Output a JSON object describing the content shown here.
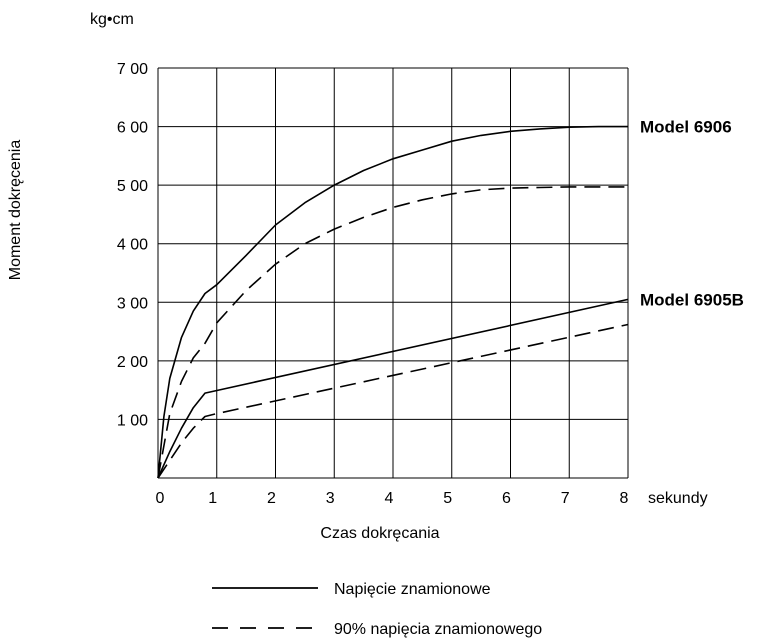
{
  "chart_data": {
    "type": "line",
    "title": "",
    "unit_label": "kg•cm",
    "xlabel": "Czas dokręcania",
    "xunit_label": "sekundy",
    "ylabel": "Moment dokręcenia",
    "xlim": [
      0,
      8
    ],
    "ylim": [
      0,
      700
    ],
    "x_ticks": [
      "0",
      "1",
      "2",
      "3",
      "4",
      "5",
      "6",
      "7",
      "8"
    ],
    "y_ticks": [
      {
        "value": 100,
        "label": "1 00"
      },
      {
        "value": 200,
        "label": "2 00"
      },
      {
        "value": 300,
        "label": "3 00"
      },
      {
        "value": 400,
        "label": "4 00"
      },
      {
        "value": 500,
        "label": "5 00"
      },
      {
        "value": 600,
        "label": "6 00"
      },
      {
        "value": 700,
        "label": "7 00"
      }
    ],
    "grid": true,
    "legend_position": "bottom",
    "legend": [
      {
        "style": "solid",
        "label": "Napięcie znamionowe"
      },
      {
        "style": "dashed",
        "label": "90% napięcia znamionowego"
      }
    ],
    "model_labels": [
      {
        "text": "Model 6906",
        "y": 600
      },
      {
        "text": "Model 6905B",
        "y": 305
      }
    ],
    "series": [
      {
        "model": "Model 6906",
        "style": "solid",
        "points": [
          [
            0,
            0
          ],
          [
            0.1,
            105
          ],
          [
            0.2,
            170
          ],
          [
            0.4,
            240
          ],
          [
            0.6,
            285
          ],
          [
            0.8,
            315
          ],
          [
            1,
            330
          ],
          [
            1.5,
            380
          ],
          [
            2,
            432
          ],
          [
            2.5,
            470
          ],
          [
            3,
            500
          ],
          [
            3.5,
            525
          ],
          [
            4,
            545
          ],
          [
            4.5,
            560
          ],
          [
            5,
            575
          ],
          [
            5.5,
            585
          ],
          [
            6,
            592
          ],
          [
            6.5,
            596
          ],
          [
            7,
            599
          ],
          [
            7.5,
            600
          ],
          [
            8,
            600
          ]
        ]
      },
      {
        "model": "Model 6906",
        "style": "dashed",
        "points": [
          [
            0,
            0
          ],
          [
            0.2,
            110
          ],
          [
            0.4,
            165
          ],
          [
            0.6,
            205
          ],
          [
            0.8,
            230
          ],
          [
            1,
            265
          ],
          [
            1.5,
            320
          ],
          [
            2,
            365
          ],
          [
            2.5,
            400
          ],
          [
            3,
            425
          ],
          [
            3.5,
            445
          ],
          [
            4,
            462
          ],
          [
            4.5,
            475
          ],
          [
            5,
            485
          ],
          [
            5.5,
            492
          ],
          [
            6,
            495
          ],
          [
            6.5,
            496
          ],
          [
            7,
            497
          ],
          [
            7.5,
            497
          ],
          [
            8,
            497
          ]
        ]
      },
      {
        "model": "Model 6905B",
        "style": "solid",
        "points": [
          [
            0,
            0
          ],
          [
            0.2,
            45
          ],
          [
            0.4,
            85
          ],
          [
            0.6,
            120
          ],
          [
            0.8,
            145
          ],
          [
            8,
            305
          ]
        ]
      },
      {
        "model": "Model 6905B",
        "style": "dashed",
        "points": [
          [
            0,
            0
          ],
          [
            0.2,
            30
          ],
          [
            0.4,
            60
          ],
          [
            0.6,
            85
          ],
          [
            0.8,
            105
          ],
          [
            1,
            110
          ],
          [
            8,
            262
          ]
        ]
      }
    ]
  }
}
